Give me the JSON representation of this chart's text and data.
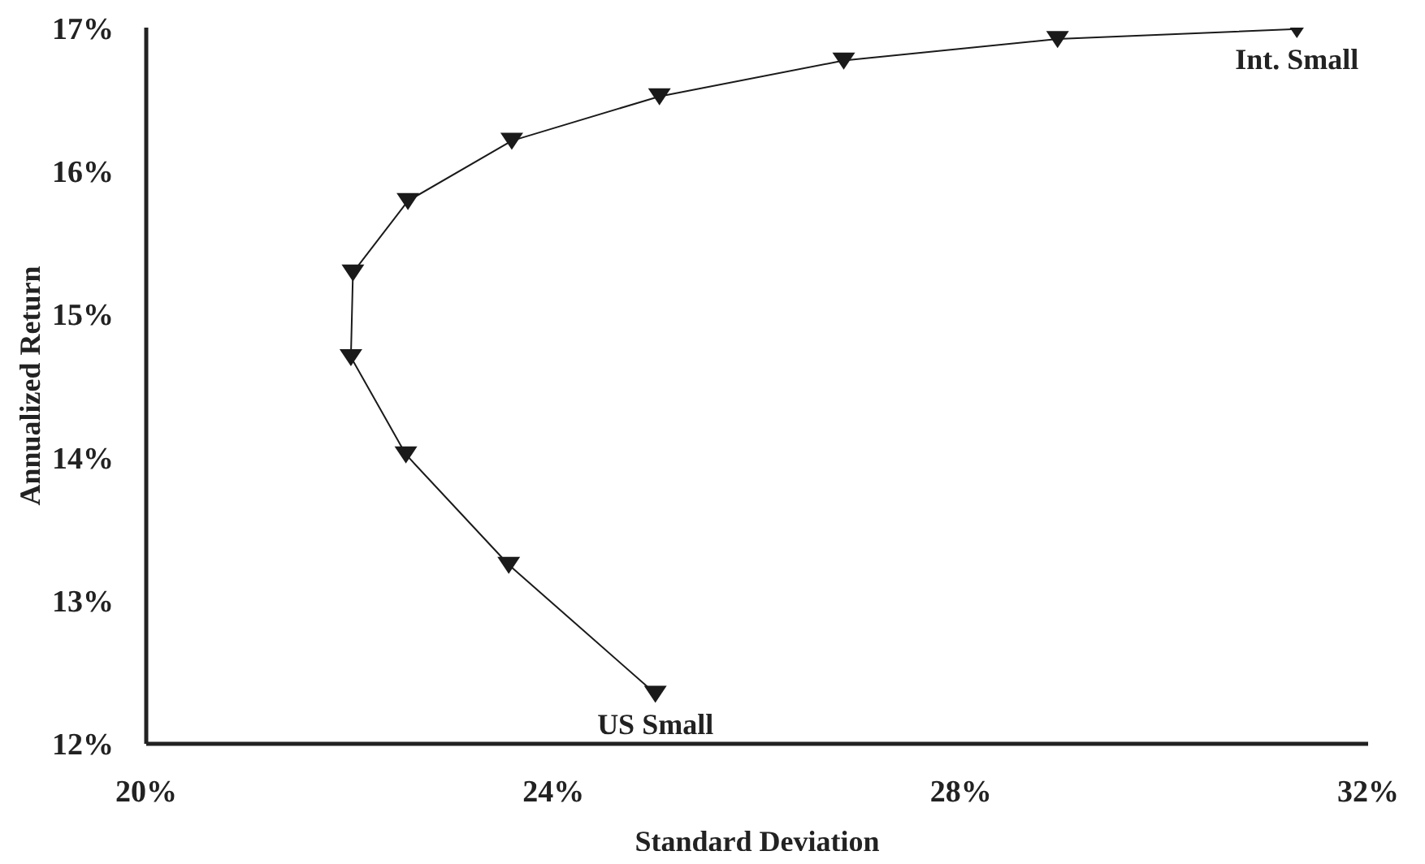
{
  "chart_data": {
    "type": "line",
    "xlabel": "Standard Deviation",
    "ylabel": "Annualized Return",
    "x": [
      25.0,
      23.56,
      22.55,
      22.01,
      22.03,
      22.57,
      23.59,
      25.04,
      26.85,
      28.95,
      31.3
    ],
    "series": [
      {
        "color": "#1a1a1a",
        "values": [
          12.35,
          13.25,
          14.02,
          14.7,
          15.29,
          15.79,
          16.21,
          16.52,
          16.77,
          16.92,
          16.99
        ]
      }
    ],
    "xlim": [
      20,
      32
    ],
    "ylim": [
      12,
      17
    ],
    "xticks": [
      {
        "value": 20,
        "label": "20%"
      },
      {
        "value": 24,
        "label": "24%"
      },
      {
        "value": 28,
        "label": "28%"
      },
      {
        "value": 32,
        "label": "32%"
      }
    ],
    "yticks": [
      {
        "value": 12,
        "label": "12%"
      },
      {
        "value": 13,
        "label": "13%"
      },
      {
        "value": 14,
        "label": "14%"
      },
      {
        "value": 15,
        "label": "15%"
      },
      {
        "value": 16,
        "label": "16%"
      },
      {
        "value": 17,
        "label": "17%"
      }
    ],
    "annotations": [
      {
        "text": "US Small",
        "x": 25.0,
        "y": 12.35
      },
      {
        "text": "Int. Small",
        "x": 31.3,
        "y": 16.99
      }
    ],
    "marker": "triangle",
    "line_style": "solid",
    "grid": false,
    "legend": false
  }
}
